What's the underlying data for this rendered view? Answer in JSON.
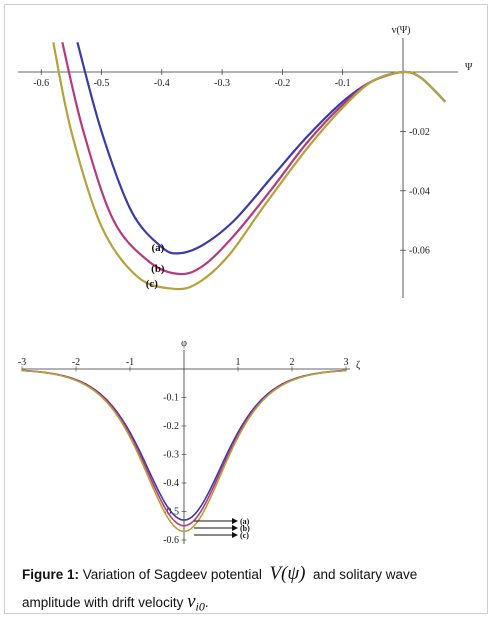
{
  "chart_data": [
    {
      "type": "line",
      "title": "",
      "xlabel": "Ψ",
      "ylabel": "v(Ψ)",
      "xlim": [
        -0.6,
        0.07
      ],
      "ylim": [
        -0.075,
        0.01
      ],
      "xticks": [
        "-0.6",
        "-0.5",
        "-0.4",
        "-0.3",
        "-0.2",
        "-0.1"
      ],
      "yticks": [
        "-0.02",
        "-0.04",
        "-0.06"
      ],
      "series": [
        {
          "name": "(a)",
          "color": "#3a3aa8",
          "x": [
            -0.54,
            -0.5,
            -0.45,
            -0.4,
            -0.37,
            -0.33,
            -0.28,
            -0.22,
            -0.16,
            -0.1,
            -0.05,
            0.0,
            0.03,
            0.07
          ],
          "y": [
            0.01,
            -0.02,
            -0.047,
            -0.059,
            -0.061,
            -0.058,
            -0.05,
            -0.036,
            -0.022,
            -0.01,
            -0.003,
            0.0,
            -0.002,
            -0.01
          ]
        },
        {
          "name": "(b)",
          "color": "#b8387e",
          "x": [
            -0.565,
            -0.53,
            -0.48,
            -0.42,
            -0.37,
            -0.33,
            -0.28,
            -0.22,
            -0.16,
            -0.1,
            -0.05,
            0.0,
            0.03,
            0.07
          ],
          "y": [
            0.01,
            -0.02,
            -0.05,
            -0.064,
            -0.068,
            -0.065,
            -0.055,
            -0.04,
            -0.024,
            -0.011,
            -0.003,
            0.0,
            -0.002,
            -0.01
          ]
        },
        {
          "name": "(c)",
          "color": "#b5a23a",
          "x": [
            -0.58,
            -0.55,
            -0.5,
            -0.44,
            -0.38,
            -0.34,
            -0.29,
            -0.23,
            -0.16,
            -0.1,
            -0.05,
            0.0,
            0.03,
            0.07
          ],
          "y": [
            0.01,
            -0.02,
            -0.052,
            -0.069,
            -0.073,
            -0.071,
            -0.062,
            -0.045,
            -0.026,
            -0.012,
            -0.003,
            0.0,
            -0.002,
            -0.01
          ]
        }
      ],
      "annotations": [
        "(a)",
        "(b)",
        "(c)"
      ]
    },
    {
      "type": "line",
      "title": "",
      "xlabel": "ζ",
      "ylabel": "φ",
      "xlim": [
        -3,
        3
      ],
      "ylim": [
        -0.62,
        0.02
      ],
      "xticks": [
        "-3",
        "-2",
        "-1",
        "1",
        "2",
        "3"
      ],
      "yticks": [
        "-0.1",
        "-0.2",
        "-0.3",
        "-0.4",
        "-0.5",
        "-0.6"
      ],
      "series": [
        {
          "name": "(a)",
          "color": "#3a3aa8",
          "amplitude": -0.53,
          "width": 1.0
        },
        {
          "name": "(b)",
          "color": "#b8387e",
          "amplitude": -0.55,
          "width": 1.0
        },
        {
          "name": "(c)",
          "color": "#b5a23a",
          "amplitude": -0.57,
          "width": 1.0
        }
      ],
      "annotations": [
        "(a)",
        "(b)",
        "(c)"
      ]
    }
  ],
  "caption": {
    "label": "Figure 1:",
    "text1": "Variation of Sagdeev potential",
    "math1": "V(ψ)",
    "text2": "and solitary wave amplitude with drift velocity",
    "math2": "v",
    "math2_sub": "i0",
    "end": "."
  }
}
